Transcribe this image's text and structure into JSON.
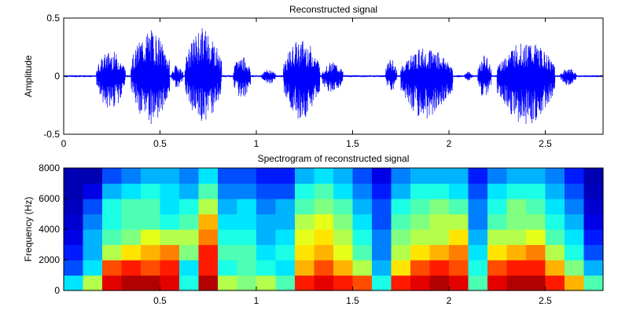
{
  "chart_data": [
    {
      "type": "line",
      "title": "Reconstructed signal",
      "xlabel": "",
      "ylabel": "Amplitude",
      "xlim": [
        0,
        2.8
      ],
      "ylim": [
        -0.5,
        0.5
      ],
      "x_ticks": [
        0,
        0.5,
        1,
        1.5,
        2,
        2.5
      ],
      "x_tick_labels": [
        "0",
        "0.5",
        "1",
        "1.5",
        "2",
        "2.5"
      ],
      "y_ticks": [
        -0.5,
        0,
        0.5
      ],
      "y_tick_labels": [
        "-0.5",
        "0",
        "0.5"
      ],
      "grid": false,
      "line_color": "#0000ff",
      "envelope_segments": [
        {
          "start": 0.17,
          "end": 0.32,
          "peak": 0.22,
          "trough": -0.3
        },
        {
          "start": 0.35,
          "end": 0.55,
          "peak": 0.4,
          "trough": -0.42
        },
        {
          "start": 0.56,
          "end": 0.62,
          "peak": 0.1,
          "trough": -0.1
        },
        {
          "start": 0.63,
          "end": 0.82,
          "peak": 0.42,
          "trough": -0.4
        },
        {
          "start": 0.88,
          "end": 0.97,
          "peak": 0.18,
          "trough": -0.2
        },
        {
          "start": 1.03,
          "end": 1.1,
          "peak": 0.06,
          "trough": -0.07
        },
        {
          "start": 1.14,
          "end": 1.33,
          "peak": 0.32,
          "trough": -0.38
        },
        {
          "start": 1.34,
          "end": 1.45,
          "peak": 0.12,
          "trough": -0.15
        },
        {
          "start": 1.67,
          "end": 1.73,
          "peak": 0.15,
          "trough": -0.13
        },
        {
          "start": 1.75,
          "end": 2.02,
          "peak": 0.25,
          "trough": -0.38
        },
        {
          "start": 2.08,
          "end": 2.12,
          "peak": 0.04,
          "trough": -0.04
        },
        {
          "start": 2.15,
          "end": 2.22,
          "peak": 0.18,
          "trough": -0.2
        },
        {
          "start": 2.25,
          "end": 2.55,
          "peak": 0.3,
          "trough": -0.42
        },
        {
          "start": 2.58,
          "end": 2.66,
          "peak": 0.07,
          "trough": -0.08
        }
      ]
    },
    {
      "type": "heatmap",
      "title": "Spectrogram of reconstructed signal",
      "xlabel": "",
      "ylabel": "Frequency (Hz)",
      "xlim": [
        0,
        2.8
      ],
      "ylim": [
        0,
        8000
      ],
      "x_ticks": [
        0.5,
        1,
        1.5,
        2,
        2.5
      ],
      "x_tick_labels": [
        "0.5",
        "1",
        "1.5",
        "2",
        "2.5"
      ],
      "y_ticks": [
        0,
        2000,
        4000,
        6000,
        8000
      ],
      "y_tick_labels": [
        "0",
        "2000",
        "4000",
        "6000",
        "8000"
      ],
      "colormap": "jet",
      "time_bins": [
        0.0,
        0.1,
        0.2,
        0.3,
        0.4,
        0.5,
        0.6,
        0.7,
        0.8,
        0.9,
        1.0,
        1.1,
        1.2,
        1.3,
        1.4,
        1.5,
        1.6,
        1.7,
        1.8,
        1.9,
        2.0,
        2.1,
        2.2,
        2.3,
        2.4,
        2.5,
        2.6,
        2.7
      ],
      "freq_bins": [
        0,
        1000,
        2000,
        3000,
        4000,
        5000,
        6000,
        7000
      ],
      "intensity": [
        [
          0.35,
          0.2,
          0.15,
          0.1,
          0.08,
          0.06,
          0.05,
          0.05
        ],
        [
          0.55,
          0.35,
          0.3,
          0.3,
          0.25,
          0.2,
          0.1,
          0.05
        ],
        [
          0.9,
          0.8,
          0.55,
          0.45,
          0.4,
          0.4,
          0.3,
          0.2
        ],
        [
          0.95,
          0.85,
          0.65,
          0.5,
          0.45,
          0.45,
          0.35,
          0.25
        ],
        [
          0.95,
          0.8,
          0.7,
          0.6,
          0.45,
          0.45,
          0.4,
          0.3
        ],
        [
          0.9,
          0.85,
          0.75,
          0.55,
          0.4,
          0.35,
          0.35,
          0.3
        ],
        [
          0.4,
          0.35,
          0.5,
          0.55,
          0.45,
          0.4,
          0.3,
          0.25
        ],
        [
          0.95,
          0.85,
          0.85,
          0.75,
          0.7,
          0.55,
          0.45,
          0.35
        ],
        [
          0.55,
          0.4,
          0.45,
          0.4,
          0.35,
          0.3,
          0.25,
          0.2
        ],
        [
          0.5,
          0.45,
          0.45,
          0.4,
          0.35,
          0.35,
          0.25,
          0.2
        ],
        [
          0.55,
          0.4,
          0.35,
          0.3,
          0.3,
          0.25,
          0.2,
          0.15
        ],
        [
          0.45,
          0.35,
          0.4,
          0.35,
          0.3,
          0.3,
          0.2,
          0.15
        ],
        [
          0.85,
          0.7,
          0.65,
          0.6,
          0.55,
          0.45,
          0.4,
          0.3
        ],
        [
          0.9,
          0.8,
          0.7,
          0.65,
          0.6,
          0.5,
          0.45,
          0.35
        ],
        [
          0.85,
          0.7,
          0.6,
          0.55,
          0.5,
          0.45,
          0.35,
          0.3
        ],
        [
          0.8,
          0.55,
          0.45,
          0.4,
          0.35,
          0.3,
          0.25,
          0.2
        ],
        [
          0.4,
          0.3,
          0.25,
          0.25,
          0.2,
          0.2,
          0.15,
          0.1
        ],
        [
          0.85,
          0.65,
          0.55,
          0.5,
          0.45,
          0.4,
          0.3,
          0.25
        ],
        [
          0.9,
          0.8,
          0.65,
          0.55,
          0.5,
          0.45,
          0.4,
          0.3
        ],
        [
          0.95,
          0.85,
          0.7,
          0.55,
          0.55,
          0.5,
          0.4,
          0.3
        ],
        [
          0.9,
          0.8,
          0.75,
          0.65,
          0.55,
          0.45,
          0.35,
          0.3
        ],
        [
          0.45,
          0.4,
          0.35,
          0.3,
          0.25,
          0.25,
          0.2,
          0.15
        ],
        [
          0.9,
          0.8,
          0.65,
          0.55,
          0.45,
          0.4,
          0.35,
          0.25
        ],
        [
          0.95,
          0.85,
          0.7,
          0.55,
          0.5,
          0.5,
          0.4,
          0.3
        ],
        [
          0.95,
          0.85,
          0.75,
          0.6,
          0.5,
          0.45,
          0.4,
          0.3
        ],
        [
          0.85,
          0.7,
          0.55,
          0.45,
          0.4,
          0.35,
          0.3,
          0.25
        ],
        [
          0.7,
          0.5,
          0.4,
          0.35,
          0.3,
          0.25,
          0.2,
          0.15
        ],
        [
          0.45,
          0.3,
          0.2,
          0.15,
          0.1,
          0.08,
          0.06,
          0.05
        ]
      ]
    }
  ]
}
